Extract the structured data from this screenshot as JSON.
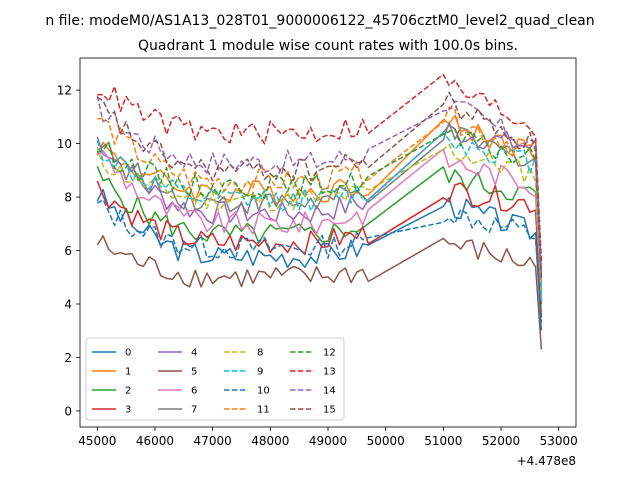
{
  "figure": {
    "suptitle": "n file: modeM0/AS1A13_028T01_9000006122_45706cztM0_level2_quad_clean",
    "axis_offset_text": "+4.478e8"
  },
  "chart_data": {
    "type": "line",
    "title": "Quadrant 1 module wise count rates with 100.0s bins.",
    "xlabel": "",
    "ylabel": "",
    "xlim": [
      44700,
      53300
    ],
    "ylim": [
      -0.6,
      13.2
    ],
    "x_offset": 447800000,
    "xticks": [
      45000,
      46000,
      47000,
      48000,
      49000,
      50000,
      51000,
      52000,
      53000
    ],
    "yticks": [
      0,
      2,
      4,
      6,
      8,
      10,
      12
    ],
    "grid": false,
    "legend": {
      "placement": "lower-left",
      "columns": 4
    },
    "time_segments": [
      {
        "start": 45000,
        "end": 49700,
        "step": 100
      },
      {
        "start": 49700,
        "end": 51000,
        "step": 1300
      },
      {
        "start": 51000,
        "end": 52700,
        "step": 100
      }
    ],
    "series": [
      {
        "name": "0",
        "color": "#1f77b4",
        "dash": "solid",
        "start": 8.1,
        "end": 5.8,
        "after_start": 7.8,
        "after_end": 6.6,
        "last": 3.0
      },
      {
        "name": "1",
        "color": "#ff7f0e",
        "dash": "solid",
        "start": 10.0,
        "end": 8.2,
        "after_start": 10.8,
        "after_end": 9.6,
        "last": 4.5
      },
      {
        "name": "2",
        "color": "#2ca02c",
        "dash": "solid",
        "start": 8.8,
        "end": 6.6,
        "after_start": 8.8,
        "after_end": 8.0,
        "last": 4.0
      },
      {
        "name": "3",
        "color": "#d62728",
        "dash": "solid",
        "start": 8.4,
        "end": 6.3,
        "after_start": 8.3,
        "after_end": 7.7,
        "last": 3.5
      },
      {
        "name": "4",
        "color": "#9467bd",
        "dash": "solid",
        "start": 10.2,
        "end": 7.4,
        "after_start": 10.5,
        "after_end": 9.8,
        "last": 4.8
      },
      {
        "name": "5",
        "color": "#8c564b",
        "dash": "solid",
        "start": 6.3,
        "end": 5.0,
        "after_start": 6.3,
        "after_end": 5.4,
        "last": 2.3
      },
      {
        "name": "6",
        "color": "#e377c2",
        "dash": "solid",
        "start": 9.8,
        "end": 7.0,
        "after_start": 9.4,
        "after_end": 8.4,
        "last": 4.2
      },
      {
        "name": "7",
        "color": "#7f7f7f",
        "dash": "solid",
        "start": 10.1,
        "end": 7.8,
        "after_start": 10.4,
        "after_end": 9.3,
        "last": 4.5
      },
      {
        "name": "8",
        "color": "#bcbd22",
        "dash": "dashed",
        "start": 9.5,
        "end": 7.9,
        "after_start": 9.8,
        "after_end": 8.8,
        "last": 4.3
      },
      {
        "name": "9",
        "color": "#17becf",
        "dash": "dashed",
        "start": 9.9,
        "end": 7.9,
        "after_start": 10.2,
        "after_end": 9.2,
        "last": 4.1
      },
      {
        "name": "10",
        "color": "#1f77b4",
        "dash": "dashed",
        "start": 7.7,
        "end": 6.1,
        "after_start": 7.5,
        "after_end": 6.5,
        "last": 3.3
      },
      {
        "name": "11",
        "color": "#ff7f0e",
        "dash": "dashed",
        "start": 11.0,
        "end": 8.6,
        "after_start": 11.0,
        "after_end": 9.6,
        "last": 4.9
      },
      {
        "name": "12",
        "color": "#2ca02c",
        "dash": "dashed",
        "start": 9.9,
        "end": 8.4,
        "after_start": 10.3,
        "after_end": 9.3,
        "last": 5.0
      },
      {
        "name": "13",
        "color": "#d62728",
        "dash": "dashed",
        "start": 12.2,
        "end": 10.4,
        "after_start": 12.3,
        "after_end": 10.5,
        "last": 5.6
      },
      {
        "name": "14",
        "color": "#9467bd",
        "dash": "dashed",
        "start": 11.4,
        "end": 9.3,
        "after_start": 11.6,
        "after_end": 9.8,
        "last": 5.2
      },
      {
        "name": "15",
        "color": "#8c564b",
        "dash": "dashed",
        "start": 11.5,
        "end": 9.0,
        "after_start": 11.6,
        "after_end": 9.8,
        "last": 4.9
      }
    ]
  }
}
